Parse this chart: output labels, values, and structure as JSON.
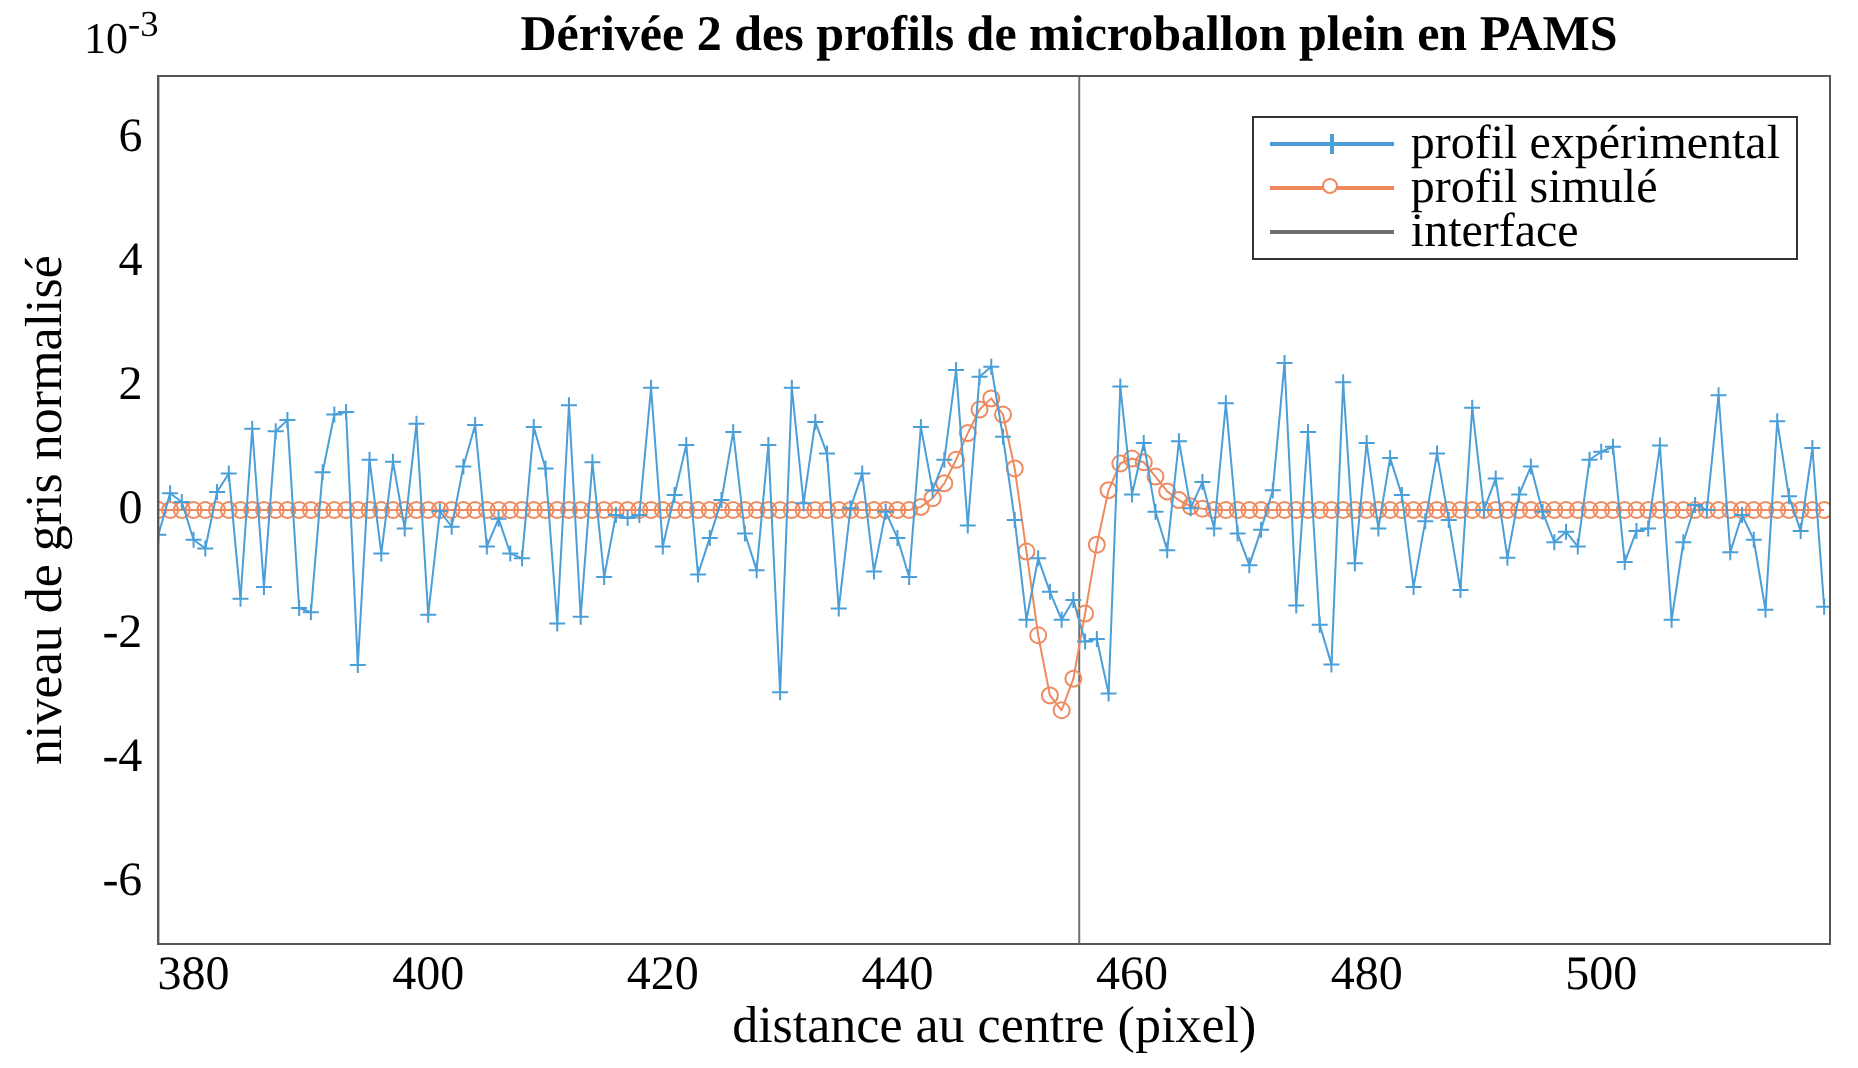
{
  "chart_data": {
    "type": "line",
    "title": "Dérivée 2 des profils de microballon plein en PAMS",
    "xlabel": "distance au centre (pixel)",
    "ylabel": "niveau de gris normalisé",
    "annotations": [
      "10$^{-3}$"
    ],
    "x": [
      377,
      378,
      379,
      380,
      381,
      382,
      383,
      384,
      385,
      386,
      387,
      388,
      389,
      390,
      391,
      392,
      393,
      394,
      395,
      396,
      397,
      398,
      399,
      400,
      401,
      402,
      403,
      404,
      405,
      406,
      407,
      408,
      409,
      410,
      411,
      412,
      413,
      414,
      415,
      416,
      417,
      418,
      419,
      420,
      421,
      422,
      423,
      424,
      425,
      426,
      427,
      428,
      429,
      430,
      431,
      432,
      433,
      434,
      435,
      436,
      437,
      438,
      439,
      440,
      441,
      442,
      443,
      444,
      445,
      446,
      447,
      448,
      449,
      450,
      451,
      452,
      453,
      454,
      455,
      456,
      457,
      458,
      459,
      460,
      461,
      462,
      463,
      464,
      465,
      466,
      467,
      468,
      469,
      470,
      471,
      472,
      473,
      474,
      475,
      476,
      477,
      478,
      479,
      480,
      481,
      482,
      483,
      484,
      485,
      486,
      487,
      488,
      489,
      490,
      491,
      492,
      493,
      494,
      495,
      496,
      497,
      498,
      499,
      500,
      501,
      502,
      503,
      504,
      505,
      506,
      507,
      508,
      509,
      510,
      511,
      512,
      513,
      514,
      515,
      516,
      517,
      518,
      519
    ],
    "series": [
      {
        "name": "profil expérimental",
        "color": "#4a9fd8",
        "marker": "cross",
        "values": [
          -0.4,
          0.27,
          0.13,
          -0.48,
          -0.62,
          0.29,
          0.59,
          -1.43,
          1.31,
          -1.24,
          1.27,
          1.45,
          -1.58,
          -1.65,
          0.61,
          1.54,
          1.58,
          -2.5,
          0.81,
          -0.7,
          0.78,
          -0.3,
          1.39,
          -1.69,
          -0.02,
          -0.27,
          0.7,
          1.37,
          -0.59,
          -0.14,
          -0.7,
          -0.78,
          1.34,
          0.67,
          -1.83,
          1.69,
          -1.72,
          0.77,
          -1.08,
          -0.08,
          -0.13,
          -0.08,
          1.97,
          -0.59,
          0.24,
          1.05,
          -1.04,
          -0.45,
          0.16,
          1.26,
          -0.38,
          -0.97,
          1.05,
          -2.94,
          1.97,
          0.11,
          1.42,
          0.91,
          -1.59,
          0.03,
          0.59,
          -0.99,
          -0.03,
          -0.45,
          -1.08,
          1.34,
          0.32,
          0.81,
          2.26,
          -0.25,
          2.15,
          2.31,
          1.18,
          -0.16,
          -1.77,
          -0.78,
          -1.32,
          -1.77,
          -1.45,
          -2.12,
          -2.08,
          -2.96,
          1.99,
          0.25,
          1.08,
          -0.03,
          -0.65,
          1.11,
          0.03,
          0.45,
          -0.3,
          1.72,
          -0.38,
          -0.89,
          -0.32,
          0.32,
          2.37,
          -1.54,
          1.26,
          -1.85,
          -2.49,
          2.06,
          -0.86,
          1.08,
          -0.3,
          0.84,
          0.24,
          -1.24,
          -0.18,
          0.91,
          -0.16,
          -1.29,
          1.65,
          0,
          0.51,
          -0.77,
          0.25,
          0.7,
          -0.03,
          -0.52,
          -0.35,
          -0.59,
          0.81,
          0.94,
          1.02,
          -0.84,
          -0.34,
          -0.3,
          1.04,
          -1.77,
          -0.52,
          0.08,
          0,
          1.85,
          -0.68,
          -0.08,
          -0.48,
          -1.61,
          1.43,
          0.22,
          -0.34,
          1,
          -1.56
        ]
      },
      {
        "name": "profil simulé",
        "color": "#ee8a5e",
        "marker": "circle",
        "values": [
          0,
          0,
          0,
          0,
          0,
          0,
          0,
          0,
          0,
          0,
          0,
          0,
          0,
          0,
          0,
          0,
          0,
          0,
          0,
          0,
          0,
          0,
          0,
          0,
          0,
          0,
          0,
          0,
          0,
          0,
          0,
          0,
          0,
          0,
          0,
          0,
          0,
          0,
          0,
          0,
          0,
          0,
          0,
          0,
          0,
          0,
          0,
          0,
          0,
          0,
          0,
          0,
          0,
          0,
          0,
          0,
          0,
          0,
          0,
          0,
          0,
          0,
          0,
          0,
          0,
          0.05,
          0.19,
          0.43,
          0.81,
          1.24,
          1.62,
          1.8,
          1.54,
          0.67,
          -0.67,
          -2.02,
          -2.99,
          -3.23,
          -2.72,
          -1.67,
          -0.56,
          0.32,
          0.75,
          0.83,
          0.77,
          0.54,
          0.3,
          0.16,
          0.06,
          0.02,
          0,
          0,
          0,
          0,
          0,
          0,
          0,
          0,
          0,
          0,
          0,
          0,
          0,
          0,
          0,
          0,
          0,
          0,
          0,
          0,
          0,
          0,
          0,
          0,
          0,
          0,
          0,
          0,
          0,
          0,
          0,
          0,
          0,
          0,
          0,
          0,
          0,
          0,
          0,
          0,
          0,
          0,
          0,
          0,
          0,
          0,
          0,
          0,
          0,
          0,
          0,
          0,
          0
        ]
      },
      {
        "name": "interface",
        "color": "#707070",
        "marker": "none",
        "x": [
          455.5,
          455.5
        ],
        "values": [
          -7,
          7
        ]
      }
    ],
    "xlim": [
      377,
      519.5
    ],
    "ylim": [
      -7,
      7
    ],
    "xticks": [
      380,
      400,
      420,
      440,
      460,
      480,
      500
    ],
    "yticks": [
      -6,
      -4,
      -2,
      0,
      2,
      4,
      6
    ],
    "grid": false,
    "legend": "top right",
    "line_style": "solid"
  }
}
